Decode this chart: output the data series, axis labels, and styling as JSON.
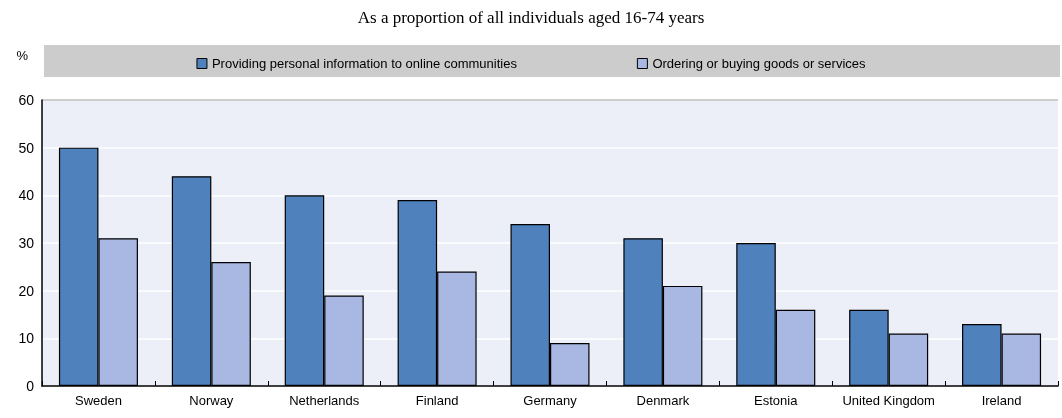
{
  "chart_data": {
    "type": "bar",
    "title": "As a proportion of all individuals aged 16-74 years",
    "ylabel": "%",
    "categories": [
      "Sweden",
      "Norway",
      "Netherlands",
      "Finland",
      "Germany",
      "Denmark",
      "Estonia",
      "United Kingdom",
      "Ireland"
    ],
    "series": [
      {
        "name": "Providing personal information to online communities",
        "color": "#4f81bd",
        "values": [
          50,
          44,
          40,
          39,
          34,
          31,
          30,
          16,
          13
        ]
      },
      {
        "name": "Ordering or buying goods or services",
        "color": "#a8b8e3",
        "values": [
          31,
          26,
          19,
          24,
          9,
          21,
          16,
          11,
          11
        ]
      }
    ],
    "ylim": [
      0,
      60
    ],
    "yticks": [
      0,
      10,
      20,
      30,
      40,
      50,
      60
    ],
    "grid": "y",
    "legend": "top"
  }
}
